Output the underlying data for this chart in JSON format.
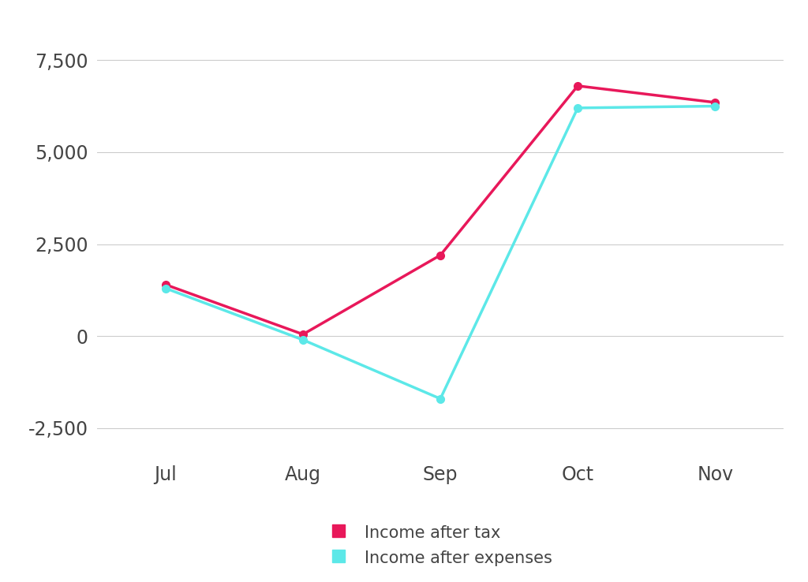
{
  "months": [
    "Jul",
    "Aug",
    "Sep",
    "Oct",
    "Nov"
  ],
  "income_after_tax": [
    1400,
    50,
    2200,
    6800,
    6350
  ],
  "income_after_expenses": [
    1300,
    -100,
    -1700,
    6200,
    6250
  ],
  "tax_color": "#E8185A",
  "expenses_color": "#5CE8E8",
  "background_color": "#ffffff",
  "ylim": [
    -3200,
    8500
  ],
  "yticks": [
    -2500,
    0,
    2500,
    5000,
    7500
  ],
  "legend_tax": "Income after tax",
  "legend_expenses": "Income after expenses",
  "line_width": 2.5,
  "marker_size": 7,
  "tick_fontsize": 17,
  "legend_fontsize": 15,
  "grid_color": "#cccccc",
  "tick_color": "#444444"
}
